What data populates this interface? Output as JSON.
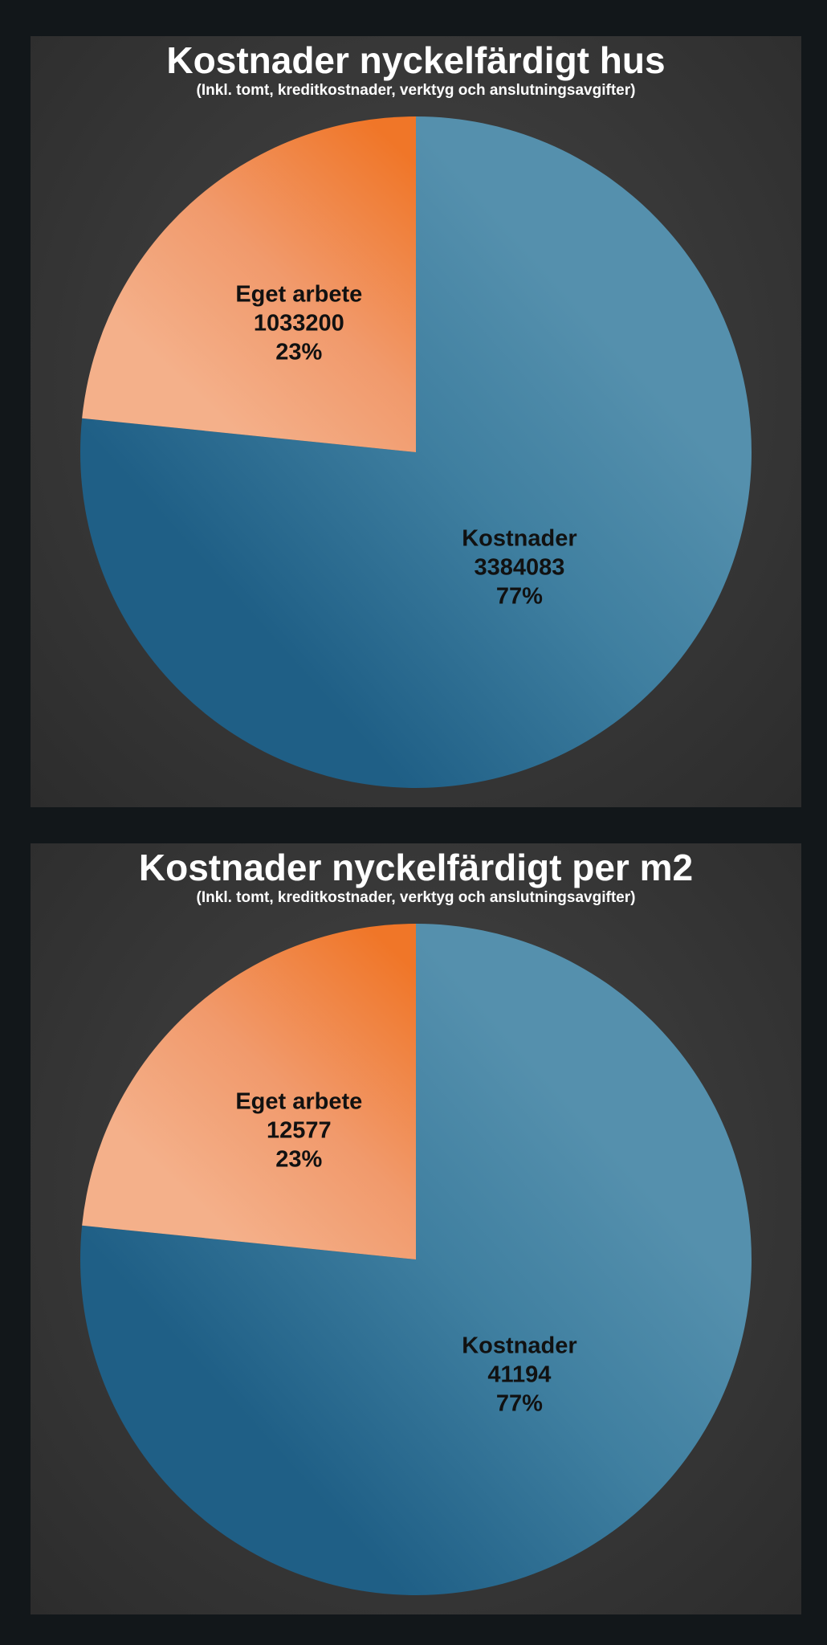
{
  "chart_data": [
    {
      "type": "pie",
      "title": "Kostnader nyckelfärdigt hus",
      "subtitle": "(Inkl. tomt, kreditkostnader, verktyg och anslutningsavgifter)",
      "slices": [
        {
          "label": "Kostnader",
          "value": 3384083,
          "percent": "77%",
          "color": "#5590ad"
        },
        {
          "label": "Eget arbete",
          "value": 1033200,
          "percent": "23%",
          "color": "#f19a6c"
        }
      ]
    },
    {
      "type": "pie",
      "title": "Kostnader nyckelfärdigt per m2",
      "subtitle": "(Inkl. tomt, kreditkostnader, verktyg och anslutningsavgifter)",
      "slices": [
        {
          "label": "Kostnader",
          "value": 41194,
          "percent": "77%",
          "color": "#5590ad"
        },
        {
          "label": "Eget arbete",
          "value": 12577,
          "percent": "23%",
          "color": "#f19a6c"
        }
      ]
    }
  ]
}
